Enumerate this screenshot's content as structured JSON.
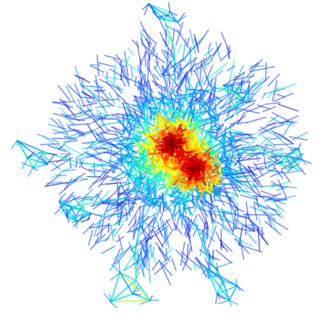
{
  "diagram": {
    "type": "network-graph",
    "background": "#ffffff",
    "colormap": "jet",
    "palette": [
      "#0000c8",
      "#1e3cff",
      "#0096ff",
      "#00e1e1",
      "#3cff9b",
      "#b4ff32",
      "#ffff00",
      "#ffb400",
      "#ff5000",
      "#e60000",
      "#8c0000"
    ],
    "hubs": [
      {
        "name": "primary-hub",
        "color": "#b40000"
      },
      {
        "name": "secondary-hub",
        "color": "#c80000"
      }
    ],
    "peripheral_clusters": [
      {
        "name": "cluster-top",
        "color": "#3cffc8"
      },
      {
        "name": "cluster-upper-right",
        "color": "#3cffb4"
      },
      {
        "name": "cluster-right",
        "color": "#50ff96"
      },
      {
        "name": "cluster-left",
        "color": "#3cffaa"
      },
      {
        "name": "cluster-lower-left",
        "color": "#00e6e6"
      },
      {
        "name": "cluster-bottom",
        "color": "#b4ff32"
      },
      {
        "name": "cluster-bottom-right",
        "color": "#00d2ff"
      }
    ]
  }
}
